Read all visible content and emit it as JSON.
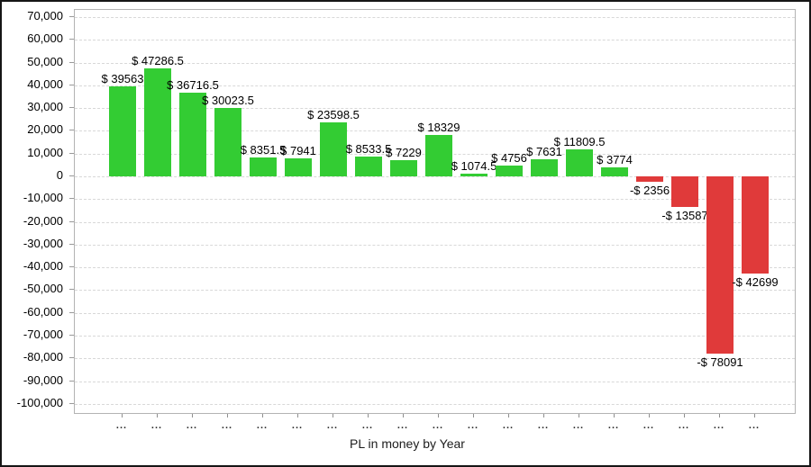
{
  "chart_data": {
    "type": "bar",
    "title": "PL in money by Year",
    "xlabel": "PL in money by Year",
    "ylabel": "",
    "ylim": [
      -100000,
      70000
    ],
    "ytick_step": 10000,
    "grid": "horizontal-dashed",
    "legend": "none",
    "categories": [
      "...",
      "...",
      "...",
      "...",
      "...",
      "...",
      "...",
      "...",
      "...",
      "...",
      "...",
      "...",
      "...",
      "...",
      "...",
      "...",
      "...",
      "...",
      "..."
    ],
    "values": [
      39563,
      47286.5,
      36716.5,
      30023.5,
      8351.5,
      7941,
      23598.5,
      8533.5,
      7229,
      18329,
      1074.5,
      4756,
      7631,
      11809.5,
      3774,
      -2356,
      -13587,
      -78091,
      -42699
    ],
    "bar_labels": [
      "$ 39563",
      "$ 47286.5",
      "$ 36716.5",
      "$ 30023.5",
      "$ 8351.5",
      "$ 7941",
      "$ 23598.5",
      "$ 8533.5",
      "$ 7229",
      "$ 18329",
      "$ 1074.5",
      "$ 4756",
      "$ 7631",
      "$ 11809.5",
      "$ 3774",
      "-$ 2356",
      "-$ 13587",
      "-$ 78091",
      "-$ 42699"
    ],
    "y_tick_labels": [
      "70,000",
      "60,000",
      "50,000",
      "40,000",
      "30,000",
      "20,000",
      "10,000",
      "0",
      "-10,000",
      "-20,000",
      "-30,000",
      "-40,000",
      "-50,000",
      "-60,000",
      "-70,000",
      "-80,000",
      "-90,000",
      "-100,000"
    ],
    "colors": {
      "positive": "#33cc33",
      "negative": "#e03a3a",
      "gridline": "#d8d8d8",
      "axis": "#b3b3b3",
      "text": "#000000"
    }
  }
}
